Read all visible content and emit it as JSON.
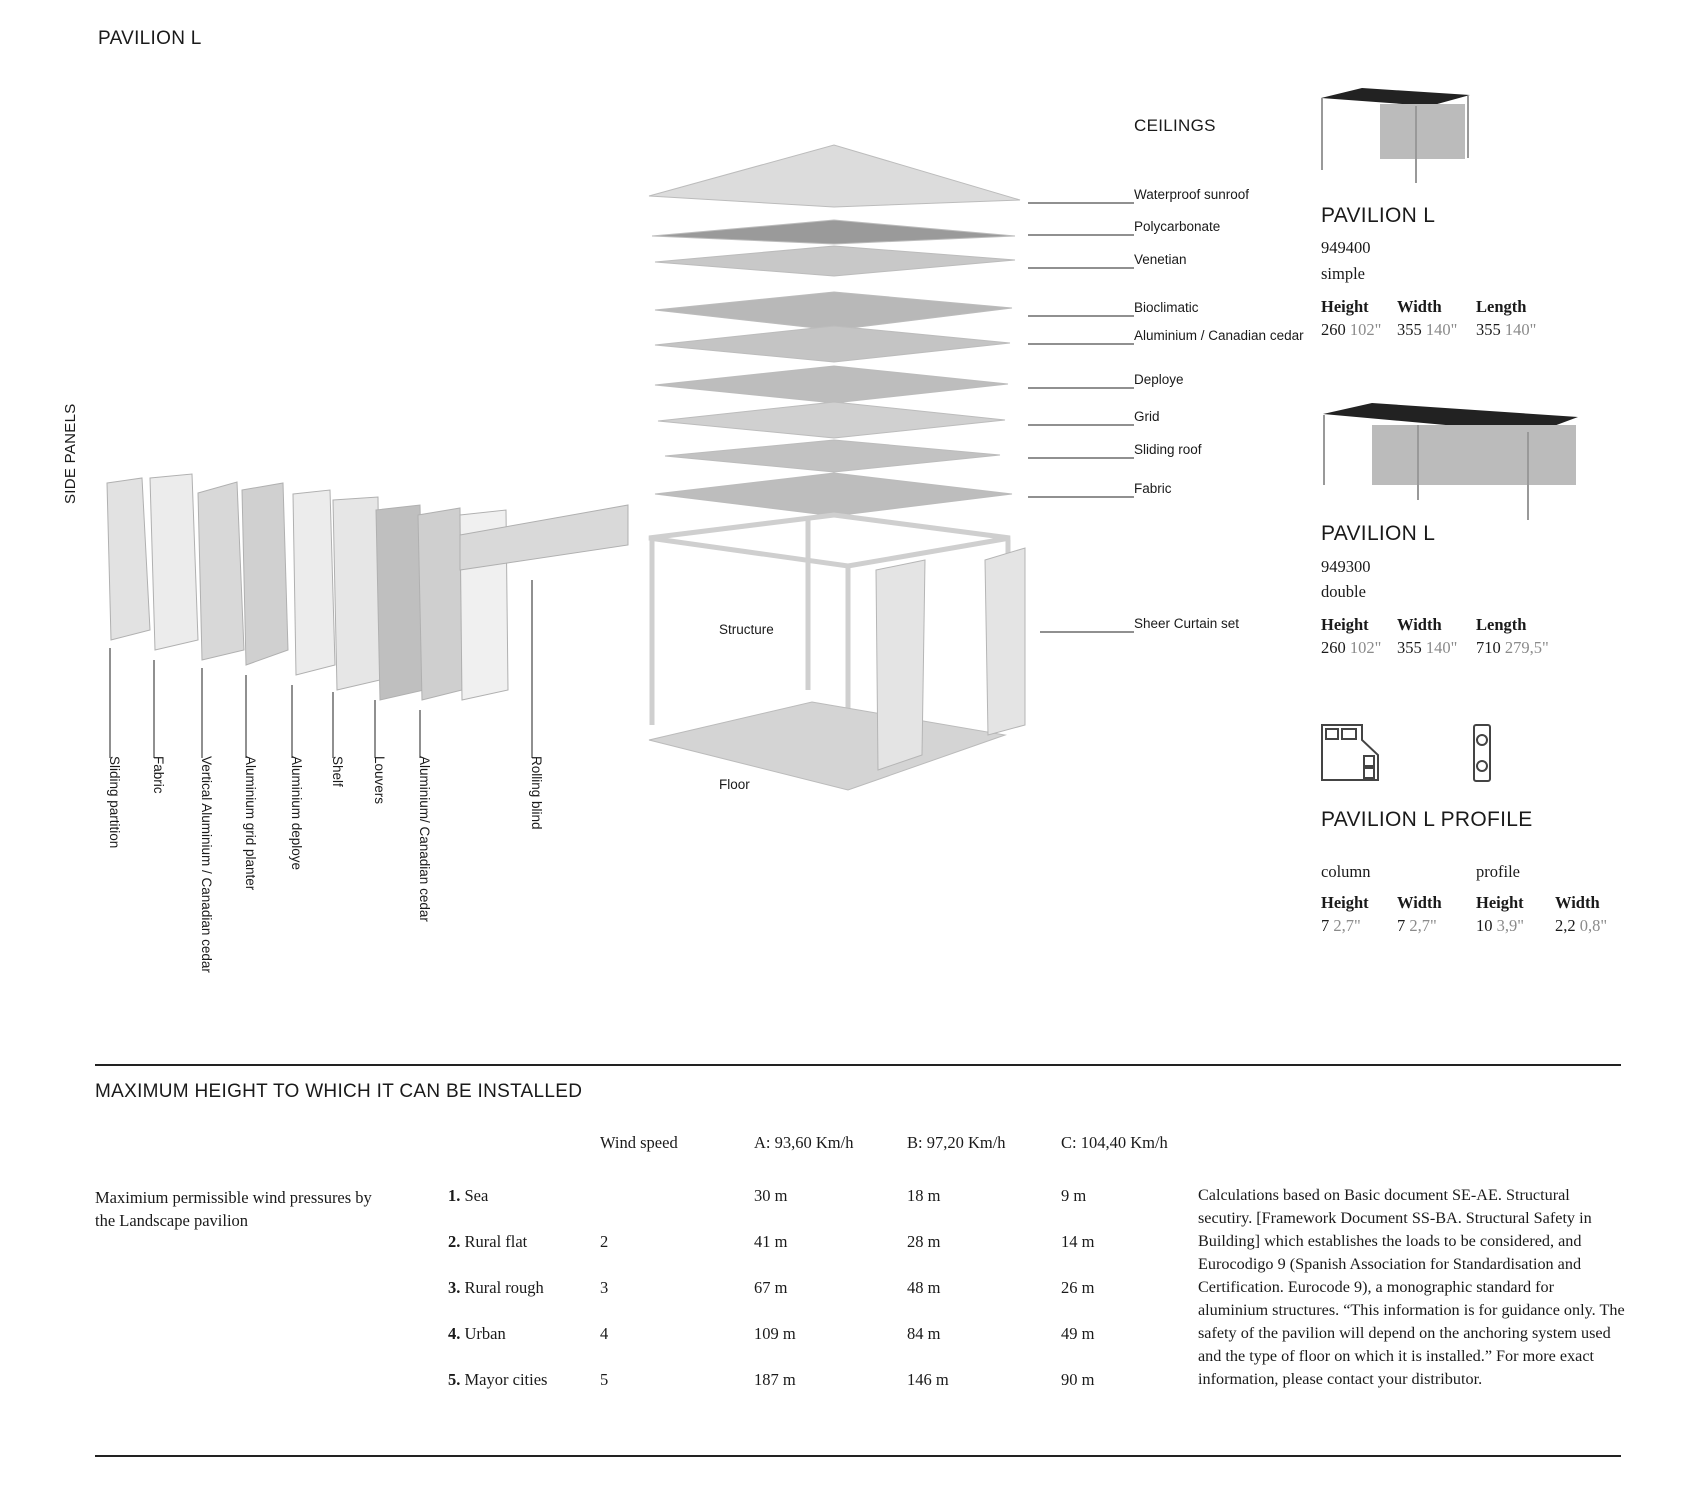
{
  "page_title": "PAVILION L",
  "ceilings": {
    "heading": "CEILINGS",
    "items": [
      "Waterproof sunroof",
      "Polycarbonate",
      "Venetian",
      "Bioclimatic",
      "Aluminium / Canadian cedar",
      "Deploye",
      "Grid",
      "Sliding roof",
      "Fabric"
    ],
    "sheer": "Sheer Curtain set"
  },
  "structure_label": "Structure",
  "floor_label": "Floor",
  "side_panels": {
    "heading": "SIDE PANELS",
    "items": [
      "Sliding partition",
      "Fabric",
      "Vertical Aluminium / Canadian cedar",
      "Aluminium grid planter",
      "Aluminium deploye",
      "Shelf",
      "Louvers",
      "Aluminium/ Canadian cedar",
      "Rolling blind"
    ]
  },
  "products": [
    {
      "name": "PAVILION L",
      "code": "949400",
      "type": "simple",
      "dims": [
        {
          "label": "Height",
          "cm": "260",
          "in": "102\""
        },
        {
          "label": "Width",
          "cm": "355",
          "in": "140\""
        },
        {
          "label": "Length",
          "cm": "355",
          "in": "140\""
        }
      ]
    },
    {
      "name": "PAVILION L",
      "code": "949300",
      "type": "double",
      "dims": [
        {
          "label": "Height",
          "cm": "260",
          "in": "102\""
        },
        {
          "label": "Width",
          "cm": "355",
          "in": "140\""
        },
        {
          "label": "Length",
          "cm": "710",
          "in": "279,5\""
        }
      ]
    }
  ],
  "profile": {
    "title": "PAVILION L PROFILE",
    "column_label": "column",
    "profile_label": "profile",
    "dims": [
      {
        "label": "Height",
        "cm": "7",
        "in": "2,7\""
      },
      {
        "label": "Width",
        "cm": "7",
        "in": "2,7\""
      },
      {
        "label": "Height",
        "cm": "10",
        "in": "3,9\""
      },
      {
        "label": "Width",
        "cm": "2,2",
        "in": "0,8\""
      }
    ]
  },
  "max_height": {
    "title": "MAXIMUM HEIGHT TO WHICH IT CAN BE INSTALLED",
    "description": "Maximium permissible wind pressures by the Landscape pavilion",
    "headers": [
      "Wind speed",
      "A: 93,60 Km/h",
      "B: 97,20 Km/h",
      "C: 104,40 Km/h"
    ],
    "rows": [
      {
        "num": "1.",
        "zone": "Sea",
        "speed": "",
        "a": "30 m",
        "b": "18 m",
        "c": "9 m"
      },
      {
        "num": "2.",
        "zone": "Rural flat",
        "speed": "2",
        "a": "41 m",
        "b": "28 m",
        "c": "14 m"
      },
      {
        "num": "3.",
        "zone": "Rural rough",
        "speed": "3",
        "a": "67 m",
        "b": "48 m",
        "c": "26 m"
      },
      {
        "num": "4.",
        "zone": "Urban",
        "speed": "4",
        "a": "109 m",
        "b": "84 m",
        "c": "49 m"
      },
      {
        "num": "5.",
        "zone": "Mayor cities",
        "speed": "5",
        "a": "187 m",
        "b": "146 m",
        "c": "90 m"
      }
    ],
    "note": "Calculations based on Basic document SE-AE. Structural secutiry. [Framework Document SS-BA. Structural Safety in Building] which establishes the loads to be considered, and Eurocodigo 9 (Spanish Association for Standardisation and Certification. Eurocode 9), a monographic standard for aluminium structures. “This information is for guidance only. The safety of the pavilion will depend on the anchoring system used and the type of floor on which it is installed.” For more exact information, please contact your distributor."
  }
}
